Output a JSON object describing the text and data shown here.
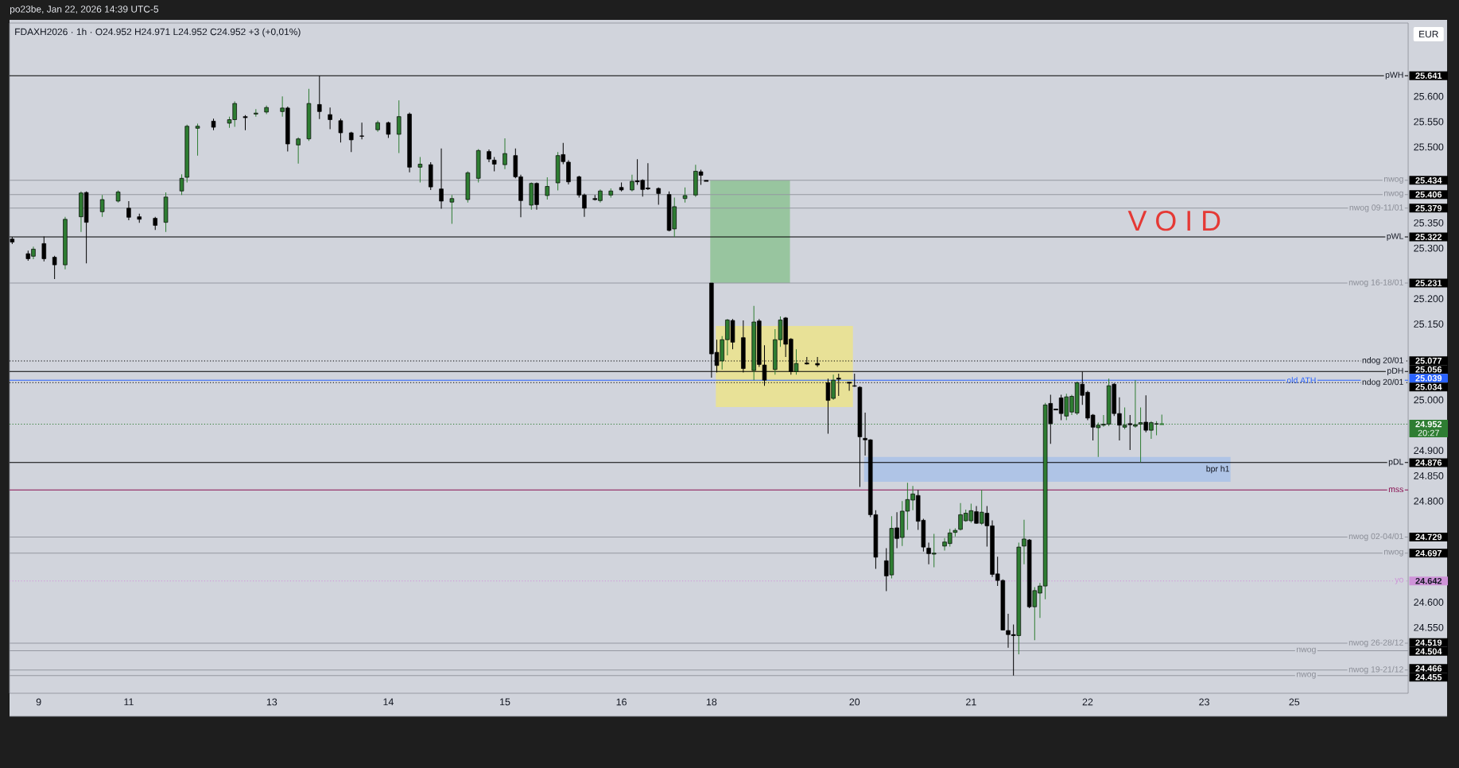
{
  "chart_data": {
    "type": "candlestick",
    "title": "FDAXH2026 · 1h · O24.952 H24.971 L24.952 C24.952 +3 (+0,01%)",
    "subtitle": "po23be, Jan 22, 2026 14:39 UTC-5",
    "categories": [
      null,
      null,
      null,
      null,
      null,
      "9",
      null,
      null,
      null,
      null,
      null,
      null,
      null,
      null,
      null,
      null,
      null,
      null,
      null,
      null,
      null,
      null,
      "11",
      null,
      null,
      null,
      null,
      null,
      null,
      null,
      null,
      null,
      null,
      null,
      null,
      null,
      null,
      null,
      null,
      null,
      null,
      null,
      null,
      null,
      null,
      null,
      null,
      null,
      null,
      "13",
      null,
      null,
      null,
      null,
      null,
      null,
      null,
      null,
      null,
      null,
      null,
      null,
      null,
      null,
      null,
      null,
      null,
      null,
      null,
      null,
      null,
      "14",
      null,
      null,
      null,
      null,
      null,
      null,
      null,
      null,
      null,
      null,
      null,
      null,
      null,
      null,
      null,
      null,
      null,
      null,
      null,
      null,
      null,
      "15",
      null,
      null,
      null,
      null,
      null,
      null,
      null,
      null,
      null,
      null,
      null,
      null,
      null,
      null,
      null,
      null,
      null,
      null,
      null,
      null,
      null,
      "16",
      null,
      null,
      null,
      null,
      null,
      null,
      null,
      null,
      null,
      null,
      null,
      null,
      null,
      null,
      null,
      null,
      "18",
      null,
      null,
      null,
      null,
      null,
      null,
      null,
      null,
      null,
      null,
      null,
      null,
      null,
      null,
      null,
      null,
      null,
      null,
      null,
      null,
      null,
      null,
      null,
      null,
      null,
      null,
      "20",
      null,
      null,
      null,
      null,
      null,
      null,
      null,
      null,
      null,
      null,
      null,
      null,
      null,
      null,
      null,
      null,
      null,
      null,
      null,
      null,
      null,
      "21",
      null,
      null,
      null,
      null,
      null,
      null,
      null,
      null,
      null,
      null,
      null,
      null,
      null,
      null,
      null,
      null,
      null,
      null,
      null,
      null,
      null,
      "22",
      null,
      null,
      null,
      null,
      null,
      null,
      null,
      null,
      null,
      null,
      null,
      null,
      null,
      null,
      null,
      null,
      null,
      null,
      null,
      null,
      null,
      "23",
      null,
      null,
      null,
      null,
      null,
      null,
      null,
      null,
      null,
      null,
      null,
      null,
      null,
      null,
      null,
      null,
      "25",
      null,
      null,
      null,
      null,
      null,
      null,
      null,
      null,
      null,
      null,
      null,
      null,
      null,
      null,
      null,
      null,
      null,
      null,
      null,
      null,
      null
    ],
    "series": [
      {
        "color": "#2e7d32",
        "ohlc": [
          null,
          null,
          null,
          null,
          [
            25284,
            25303,
            25278,
            25298
          ],
          null,
          null,
          null,
          null,
          null,
          [
            25267,
            25362,
            25258,
            25357
          ],
          null,
          null,
          [
            25362,
            25412,
            25332,
            25409
          ],
          null,
          null,
          null,
          [
            25372,
            25405,
            25362,
            25396
          ],
          null,
          null,
          [
            25393,
            25414,
            25390,
            25411
          ],
          null,
          null,
          null,
          null,
          null,
          null,
          null,
          null,
          [
            25351,
            25410,
            25332,
            25401
          ],
          null,
          null,
          [
            25413,
            25446,
            25405,
            25438
          ],
          [
            25440,
            25544,
            25430,
            25541
          ],
          null,
          [
            25537,
            25546,
            25483,
            25541
          ],
          null,
          null,
          null,
          null,
          null,
          [
            25547,
            25560,
            25538,
            25554
          ],
          [
            25554,
            25590,
            25540,
            25586
          ],
          null,
          null,
          null,
          [
            25565,
            25575,
            25560,
            25567
          ],
          null,
          [
            25569,
            25582,
            25565,
            25578
          ],
          null,
          null,
          [
            25570,
            25600,
            25560,
            25577
          ],
          null,
          null,
          [
            25504,
            25519,
            25467,
            25516
          ],
          null,
          [
            25516,
            25615,
            25512,
            25586
          ],
          null,
          null,
          null,
          null,
          null,
          null,
          null,
          null,
          null,
          null,
          null,
          null,
          [
            25534,
            25552,
            25530,
            25548
          ],
          null,
          null,
          null,
          [
            25525,
            25592,
            25488,
            25560
          ],
          null,
          null,
          null,
          [
            25460,
            25480,
            25430,
            25466
          ],
          null,
          null,
          null,
          null,
          null,
          [
            25391,
            25405,
            25348,
            25398
          ],
          null,
          null,
          [
            25396,
            25452,
            25390,
            25449
          ],
          null,
          [
            25438,
            25496,
            25430,
            25493
          ],
          null,
          null,
          null,
          null,
          [
            25465,
            25517,
            25456,
            25487
          ],
          null,
          null,
          null,
          null,
          [
            25385,
            25430,
            25376,
            25428
          ],
          null,
          null,
          [
            25404,
            25440,
            25396,
            25422
          ],
          null,
          [
            25429,
            25490,
            25414,
            25483
          ],
          null,
          null,
          null,
          null,
          null,
          null,
          null,
          [
            25394,
            25416,
            25390,
            25413
          ],
          null,
          [
            25405,
            25418,
            25400,
            25413
          ],
          null,
          null,
          null,
          [
            25415,
            25445,
            25412,
            25432
          ],
          null,
          null,
          null,
          null,
          null,
          null,
          null,
          [
            25338,
            25400,
            25322,
            25382
          ],
          null,
          [
            25398,
            25420,
            25390,
            25404
          ],
          null,
          [
            25405,
            25465,
            25401,
            25452
          ],
          null,
          null,
          null,
          null,
          [
            25077,
            25126,
            25060,
            25119
          ],
          [
            25119,
            25160,
            25088,
            25158
          ],
          null,
          null,
          null,
          null,
          [
            25058,
            25186,
            25039,
            25154
          ],
          null,
          null,
          null,
          [
            25060,
            25140,
            25050,
            25119
          ],
          [
            25119,
            25165,
            25105,
            25158
          ],
          null,
          null,
          [
            25056,
            25100,
            25050,
            25072
          ],
          null,
          null,
          null,
          null,
          null,
          null,
          [
            25003,
            25050,
            25000,
            25039
          ],
          null,
          null,
          null,
          null,
          null,
          null,
          null,
          null,
          null,
          null,
          [
            24654,
            24770,
            24647,
            24746
          ],
          null,
          [
            24728,
            24800,
            24711,
            24780
          ],
          [
            24780,
            24836,
            24743,
            24803
          ],
          [
            24802,
            24830,
            24782,
            24814
          ],
          null,
          null,
          null,
          [
            24695,
            24735,
            24669,
            24697
          ],
          null,
          [
            24711,
            24727,
            24702,
            24719
          ],
          [
            24716,
            24745,
            24710,
            24737
          ],
          [
            24738,
            24746,
            24730,
            24742
          ],
          [
            24744,
            24796,
            24742,
            24773
          ],
          [
            24761,
            24783,
            24759,
            24776
          ],
          [
            24761,
            24795,
            24757,
            24781
          ],
          null,
          [
            24756,
            24822,
            24753,
            24778
          ],
          null,
          null,
          null,
          null,
          null,
          null,
          [
            24534,
            24718,
            24497,
            24709
          ],
          [
            24711,
            24763,
            24675,
            24725
          ],
          null,
          [
            24591,
            24630,
            24525,
            24623
          ],
          [
            24618,
            24638,
            24569,
            24632
          ],
          [
            24632,
            24994,
            24606,
            24990
          ],
          null,
          null,
          null,
          [
            24968,
            25012,
            24960,
            25006
          ],
          [
            24976,
            25010,
            24970,
            25007
          ],
          [
            24974,
            25036,
            24970,
            25034
          ],
          null,
          null,
          null,
          [
            24945,
            24955,
            24887,
            24950
          ],
          [
            24950,
            24970,
            24947,
            24952
          ],
          [
            24952,
            25042,
            24948,
            25028
          ],
          null,
          null,
          [
            24946,
            24985,
            24942,
            24950
          ],
          null,
          [
            24948,
            25039,
            24945,
            24951
          ],
          [
            24952,
            24985,
            24877,
            24955
          ],
          null,
          [
            24940,
            24958,
            24923,
            24955
          ],
          [
            24952,
            24958,
            24930,
            24953
          ],
          [
            24952,
            24971,
            24952,
            24952
          ],
          null,
          null,
          null,
          null,
          null,
          null,
          null,
          null,
          null,
          null,
          null,
          null,
          null,
          null,
          null,
          null,
          null,
          null,
          null,
          null,
          null,
          null,
          null,
          null,
          null,
          null,
          null,
          null,
          null,
          null,
          null,
          null,
          null,
          null,
          null,
          null,
          null,
          null,
          null,
          null,
          null,
          null,
          null,
          null,
          null,
          null
        ]
      },
      {
        "color": "#000000",
        "ohlc": [
          [
            25318,
            25322,
            25308,
            25312
          ],
          null,
          null,
          [
            25289,
            25295,
            25275,
            25279
          ],
          null,
          null,
          [
            25309,
            25323,
            25274,
            25279
          ],
          null,
          [
            25282,
            25285,
            25239,
            25267
          ],
          null,
          null,
          null,
          null,
          null,
          [
            25410,
            25412,
            25270,
            25351
          ],
          null,
          null,
          null,
          null,
          null,
          null,
          null,
          [
            25379,
            25393,
            25355,
            25361
          ],
          null,
          [
            25362,
            25368,
            25350,
            25357
          ],
          null,
          null,
          [
            25359,
            25362,
            25336,
            25345
          ],
          null,
          null,
          null,
          null,
          null,
          null,
          null,
          null,
          null,
          null,
          [
            25551,
            25556,
            25533,
            25539
          ],
          null,
          null,
          null,
          null,
          null,
          [
            25559,
            25563,
            25533,
            25559
          ],
          null,
          null,
          null,
          null,
          null,
          null,
          null,
          [
            25577,
            25580,
            25491,
            25506
          ],
          null,
          null,
          null,
          null,
          null,
          [
            25584,
            25641,
            25555,
            25570
          ],
          null,
          [
            25564,
            25578,
            25535,
            25554
          ],
          null,
          [
            25552,
            25556,
            25509,
            25528
          ],
          null,
          [
            25528,
            25530,
            25490,
            25514
          ],
          null,
          [
            25522,
            25548,
            25515,
            25521
          ],
          null,
          null,
          null,
          null,
          [
            25548,
            25550,
            25518,
            25525
          ],
          null,
          null,
          null,
          [
            25565,
            25568,
            25450,
            25460
          ],
          null,
          null,
          null,
          [
            25465,
            25470,
            25415,
            25421
          ],
          null,
          [
            25417,
            25497,
            25378,
            25393
          ],
          null,
          null,
          null,
          null,
          null,
          null,
          null,
          null,
          [
            25491,
            25495,
            25470,
            25476
          ],
          [
            25474,
            25480,
            25452,
            25466
          ],
          null,
          null,
          null,
          [
            25483,
            25497,
            25438,
            25441
          ],
          [
            25441,
            25445,
            25361,
            25394
          ],
          null,
          null,
          [
            25428,
            25430,
            25376,
            25386
          ],
          null,
          null,
          null,
          null,
          [
            25485,
            25508,
            25466,
            25471
          ],
          [
            25470,
            25474,
            25426,
            25431
          ],
          null,
          [
            25441,
            25443,
            25400,
            25405
          ],
          [
            25405,
            25408,
            25362,
            25379
          ],
          null,
          [
            25397,
            25405,
            25394,
            25397
          ],
          null,
          null,
          null,
          null,
          [
            25420,
            25430,
            25412,
            25415
          ],
          null,
          null,
          [
            25432,
            25476,
            25425,
            25432
          ],
          [
            25434,
            25436,
            25402,
            25416
          ],
          [
            25418,
            25468,
            25415,
            25418
          ],
          null,
          [
            25418,
            25420,
            25386,
            25408
          ],
          null,
          [
            25406,
            25412,
            25333,
            25335
          ],
          null,
          null,
          null,
          null,
          null,
          [
            25451,
            25455,
            25425,
            25444
          ],
          [
            25433,
            25434,
            25432,
            25433
          ],
          [
            25231,
            25231,
            25044,
            25091
          ],
          [
            25094,
            25119,
            25054,
            25068
          ],
          null,
          null,
          [
            25157,
            25160,
            25100,
            25114
          ],
          null,
          [
            25123,
            25157,
            25054,
            25062
          ],
          null,
          null,
          [
            25156,
            25160,
            25065,
            25070
          ],
          [
            25069,
            25108,
            25028,
            25039
          ],
          null,
          null,
          null,
          [
            25162,
            25164,
            25085,
            25110
          ],
          [
            25120,
            25122,
            25050,
            25056
          ],
          null,
          null,
          [
            25072,
            25085,
            25070,
            25072
          ],
          null,
          [
            25072,
            25085,
            25065,
            25069
          ],
          null,
          [
            25034,
            25042,
            24933,
            24999
          ],
          null,
          [
            25042,
            25052,
            25008,
            25042
          ],
          null,
          [
            25034,
            25035,
            25018,
            25034
          ],
          [
            25028,
            25052,
            25026,
            25027
          ],
          [
            25025,
            25027,
            24828,
            24927
          ],
          [
            24924,
            24975,
            24890,
            24921
          ],
          [
            24921,
            24922,
            24768,
            24773
          ],
          [
            24773,
            24782,
            24666,
            24689
          ],
          null,
          [
            24682,
            24707,
            24622,
            24652
          ],
          null,
          [
            24747,
            24778,
            24707,
            24726
          ],
          null,
          null,
          null,
          [
            24811,
            24822,
            24743,
            24760
          ],
          [
            24762,
            24765,
            24700,
            24709
          ],
          [
            24707,
            24718,
            24675,
            24696
          ],
          null,
          null,
          null,
          null,
          null,
          null,
          null,
          null,
          [
            24779,
            24790,
            24755,
            24756
          ],
          null,
          [
            24776,
            24790,
            24710,
            24751
          ],
          [
            24751,
            24762,
            24650,
            24655
          ],
          [
            24656,
            24690,
            24632,
            24643
          ],
          [
            24643,
            24645,
            24544,
            24545
          ],
          [
            24544,
            24577,
            24510,
            24536
          ],
          [
            24535,
            24556,
            24455,
            24535
          ],
          null,
          null,
          [
            24723,
            24725,
            24588,
            24591
          ],
          null,
          null,
          null,
          [
            24993,
            25010,
            24913,
            24953
          ],
          [
            24981,
            24982,
            24980,
            24981
          ],
          [
            25004,
            25010,
            24960,
            24973
          ],
          null,
          null,
          null,
          [
            25031,
            25056,
            24990,
            25009
          ],
          [
            25015,
            25018,
            24960,
            24964
          ],
          [
            24970,
            24972,
            24920,
            24946
          ],
          null,
          null,
          null,
          [
            25031,
            25033,
            24968,
            24973
          ],
          [
            24973,
            25005,
            24920,
            24950
          ],
          null,
          [
            24952,
            24970,
            24901,
            24952
          ],
          null,
          null,
          [
            24956,
            25009,
            24936,
            24940
          ],
          null,
          null,
          null,
          null,
          null,
          null,
          null,
          null,
          null,
          null,
          null,
          null,
          null,
          null,
          null,
          null,
          null,
          null,
          null,
          null,
          null,
          null,
          null,
          null,
          null,
          null,
          null,
          null,
          null,
          null,
          null,
          null,
          null,
          null,
          null,
          null,
          null,
          null,
          null,
          null,
          null,
          null,
          null,
          null,
          null,
          null,
          null,
          null,
          null
        ]
      }
    ],
    "ylim": [
      24420,
      25745
    ],
    "yticks": [
      {
        "value": 25641,
        "label": "25.641"
      },
      {
        "value": 25600,
        "label": "25.600"
      },
      {
        "value": 25550,
        "label": "25.550"
      },
      {
        "value": 25500,
        "label": "25.500"
      },
      {
        "value": 25434,
        "label": "25.434"
      },
      {
        "value": 25406,
        "label": "25.406"
      },
      {
        "value": 25379,
        "label": "25.379"
      },
      {
        "value": 25350,
        "label": "25.350"
      },
      {
        "value": 25322,
        "label": "25.322"
      },
      {
        "value": 25300,
        "label": "25.300"
      },
      {
        "value": 25231,
        "label": "25.231"
      },
      {
        "value": 25200,
        "label": "25.200"
      },
      {
        "value": 25150,
        "label": "25.150"
      },
      {
        "value": 25077,
        "label": "25.077"
      },
      {
        "value": 25056,
        "label": "25.056"
      },
      {
        "value": 25039,
        "label": "25.039"
      },
      {
        "value": 25034,
        "label": "25.034"
      },
      {
        "value": 25000,
        "label": "25.000"
      },
      {
        "value": 24952,
        "label": "24.952"
      },
      {
        "value": 24900,
        "label": "24.900"
      },
      {
        "value": 24876,
        "label": "24.876"
      },
      {
        "value": 24850,
        "label": "24.850"
      },
      {
        "value": 24800,
        "label": "24.800"
      },
      {
        "value": 24729,
        "label": "24.729"
      },
      {
        "value": 24697,
        "label": "24.697"
      },
      {
        "value": 24642,
        "label": "24.642"
      },
      {
        "value": 24600,
        "label": "24.600"
      },
      {
        "value": 24550,
        "label": "24.550"
      },
      {
        "value": 24519,
        "label": "24.519"
      },
      {
        "value": 24504,
        "label": "24.504"
      },
      {
        "value": 24466,
        "label": "24.466"
      },
      {
        "value": 24455,
        "label": "24.455"
      }
    ],
    "bands": [
      {
        "axis": "y",
        "from": 25231,
        "to": 25434,
        "color": "#98c59f"
      },
      {
        "axis": "y",
        "from": 24986,
        "to": 25146,
        "color": "#e8e197"
      },
      {
        "axis": "y",
        "from": 24838,
        "to": 24887,
        "color": "#afc4e6",
        "label": "bpr h1"
      }
    ],
    "ref_lines": [
      {
        "axis": "y",
        "value": 25641,
        "label": "pWH",
        "color": "#000000",
        "line_style": "solid"
      },
      {
        "axis": "y",
        "value": 25434,
        "label": "nwog",
        "color": "#9598a1",
        "line_style": "solid"
      },
      {
        "axis": "y",
        "value": 25406,
        "label": "nwog",
        "color": "#9598a1",
        "line_style": "solid"
      },
      {
        "axis": "y",
        "value": 25379,
        "label": "nwog 09-11/01",
        "color": "#9598a1",
        "line_style": "solid"
      },
      {
        "axis": "y",
        "value": 25322,
        "label": "pWL",
        "color": "#000000",
        "line_style": "solid"
      },
      {
        "axis": "y",
        "value": 25231,
        "label": "nwog 16-18/01",
        "color": "#9598a1",
        "line_style": "solid"
      },
      {
        "axis": "y",
        "value": 25077,
        "label": "ndog 20/01",
        "color": "#000000",
        "line_style": "dotted"
      },
      {
        "axis": "y",
        "value": 25056,
        "label": "pDH",
        "color": "#000000",
        "line_style": "solid"
      },
      {
        "axis": "y",
        "value": 25039,
        "label": "old ATH",
        "color": "#2962ff",
        "line_style": "solid"
      },
      {
        "axis": "y",
        "value": 25034,
        "label": "ndog 20/01",
        "color": "#000000",
        "line_style": "dotted"
      },
      {
        "axis": "y",
        "value": 24952,
        "color": "#2e7d32",
        "line_style": "dotted"
      },
      {
        "axis": "y",
        "value": 24876,
        "label": "pDL",
        "color": "#000000",
        "line_style": "solid"
      },
      {
        "axis": "y",
        "value": 24822,
        "label": "mss",
        "color": "#880e4f",
        "line_style": "solid"
      },
      {
        "axis": "y",
        "value": 24729,
        "label": "nwog 02-04/01",
        "color": "#9598a1",
        "line_style": "solid"
      },
      {
        "axis": "y",
        "value": 24697,
        "label": "nwog",
        "color": "#9598a1",
        "line_style": "solid"
      },
      {
        "axis": "y",
        "value": 24642,
        "label": "yo",
        "color": "#ce93d8",
        "line_style": "dotted"
      },
      {
        "axis": "y",
        "value": 24519,
        "label": "nwog 26-28/12",
        "color": "#9598a1",
        "line_style": "solid"
      },
      {
        "axis": "y",
        "value": 24504,
        "label": "nwog",
        "color": "#9598a1",
        "line_style": "solid"
      },
      {
        "axis": "y",
        "value": 24466,
        "label": "nwog 19-21/12",
        "color": "#9598a1",
        "line_style": "solid"
      },
      {
        "axis": "y",
        "value": 24455,
        "label": "nwog",
        "color": "#9598a1",
        "line_style": "solid"
      }
    ],
    "annotations": [
      "V O I D",
      "EUR",
      "20:27"
    ]
  }
}
